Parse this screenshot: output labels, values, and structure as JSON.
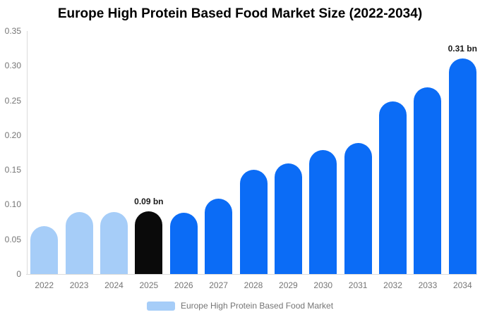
{
  "chart_data": {
    "type": "bar",
    "title": "Europe High Protein Based Food Market Size (2022-2034)",
    "categories": [
      "2022",
      "2023",
      "2024",
      "2025",
      "2026",
      "2027",
      "2028",
      "2029",
      "2030",
      "2031",
      "2032",
      "2033",
      "2034"
    ],
    "values": [
      0.069,
      0.089,
      0.089,
      0.09,
      0.088,
      0.109,
      0.15,
      0.159,
      0.179,
      0.189,
      0.249,
      0.269,
      0.31
    ],
    "bar_roles": [
      "historical",
      "historical",
      "historical",
      "highlight",
      "forecast",
      "forecast",
      "forecast",
      "forecast",
      "forecast",
      "forecast",
      "forecast",
      "forecast",
      "forecast"
    ],
    "annotations": [
      {
        "category": "2025",
        "text": "0.09 bn"
      },
      {
        "category": "2034",
        "text": "0.31 bn"
      }
    ],
    "yticks": [
      "0.35",
      "0.30",
      "0.25",
      "0.20",
      "0.15",
      "0.10",
      "0.05",
      "0"
    ],
    "ylim": [
      0,
      0.35
    ],
    "xlabel": "",
    "ylabel": "",
    "grid": false,
    "legend": {
      "label": "Europe High Protein Based Food Market",
      "position": "bottom"
    }
  },
  "colors": {
    "historical_bar": "#A6CDF8",
    "highlight_bar": "#0A0A0A",
    "forecast_bar": "#0B6CF6",
    "legend_swatch": "#A6CDF8",
    "axis_line": "#DBDBDB",
    "tick_label": "#757575",
    "annotation_text": "#1A1A1A",
    "title_text": "#000000",
    "background": "#FFFFFF"
  }
}
